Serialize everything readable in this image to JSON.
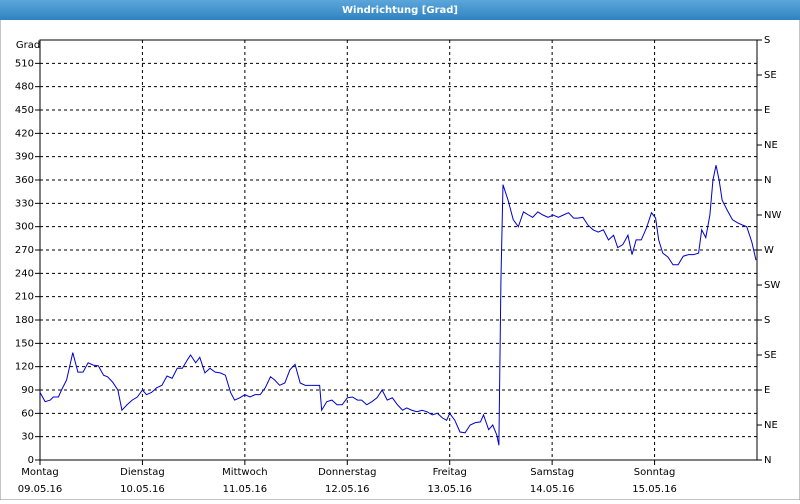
{
  "window_title": "Windrichtung [Grad]",
  "chart_data": {
    "type": "line",
    "y_label": "Grad",
    "x": [
      0,
      0.05,
      0.1,
      0.13,
      0.18,
      0.21,
      0.26,
      0.32,
      0.37,
      0.42,
      0.47,
      0.52,
      0.57,
      0.62,
      0.66,
      0.71,
      0.76,
      0.8,
      0.85,
      0.9,
      0.95,
      1.0,
      1.04,
      1.09,
      1.14,
      1.19,
      1.24,
      1.29,
      1.34,
      1.39,
      1.44,
      1.47,
      1.52,
      1.56,
      1.61,
      1.66,
      1.71,
      1.76,
      1.81,
      1.86,
      1.9,
      1.95,
      2.0,
      2.05,
      2.1,
      2.15,
      2.2,
      2.25,
      2.29,
      2.34,
      2.39,
      2.44,
      2.49,
      2.54,
      2.59,
      2.64,
      2.69,
      2.73,
      2.75,
      2.8,
      2.85,
      2.9,
      2.95,
      3.0,
      3.05,
      3.1,
      3.14,
      3.19,
      3.24,
      3.29,
      3.34,
      3.39,
      3.44,
      3.49,
      3.54,
      3.58,
      3.63,
      3.68,
      3.73,
      3.78,
      3.83,
      3.88,
      3.93,
      3.97,
      4.0,
      4.05,
      4.1,
      4.15,
      4.2,
      4.25,
      4.3,
      4.33,
      4.38,
      4.42,
      4.46,
      4.48,
      4.5,
      4.52,
      4.57,
      4.62,
      4.67,
      4.72,
      4.77,
      4.81,
      4.86,
      4.91,
      4.96,
      5.01,
      5.06,
      5.11,
      5.16,
      5.21,
      5.25,
      5.3,
      5.35,
      5.4,
      5.45,
      5.5,
      5.55,
      5.6,
      5.64,
      5.69,
      5.74,
      5.78,
      5.82,
      5.87,
      5.92,
      5.97,
      6.01,
      6.04,
      6.08,
      6.13,
      6.18,
      6.23,
      6.28,
      6.33,
      6.38,
      6.43,
      6.46,
      6.5,
      6.54,
      6.57,
      6.6,
      6.63,
      6.66,
      6.71,
      6.76,
      6.81,
      6.86,
      6.9,
      6.95,
      6.99
    ],
    "series": [
      {
        "color": "#0000cc",
        "values": [
          87,
          75,
          77,
          81,
          81,
          90,
          103,
          138,
          113,
          113,
          125,
          122,
          121,
          109,
          107,
          100,
          90,
          64,
          71,
          77,
          81,
          90,
          84,
          87,
          93,
          96,
          108,
          105,
          118,
          118,
          129,
          135,
          125,
          132,
          112,
          118,
          113,
          112,
          109,
          87,
          77,
          80,
          84,
          81,
          84,
          84,
          93,
          107,
          103,
          96,
          99,
          116,
          123,
          99,
          96,
          96,
          96,
          96,
          64,
          75,
          77,
          71,
          71,
          80,
          81,
          77,
          77,
          71,
          75,
          80,
          90,
          77,
          80,
          71,
          64,
          67,
          64,
          62,
          64,
          62,
          58,
          60,
          54,
          51,
          60,
          51,
          36,
          35,
          45,
          48,
          49,
          58,
          39,
          45,
          32,
          19,
          231,
          354,
          334,
          309,
          300,
          319,
          315,
          312,
          319,
          315,
          312,
          315,
          312,
          315,
          318,
          311,
          311,
          312,
          302,
          296,
          293,
          296,
          283,
          289,
          273,
          277,
          289,
          264,
          283,
          283,
          298,
          318,
          311,
          283,
          266,
          261,
          251,
          251,
          262,
          264,
          264,
          266,
          296,
          286,
          315,
          360,
          379,
          360,
          334,
          321,
          309,
          305,
          302,
          300,
          280,
          257
        ]
      }
    ],
    "xlim": [
      0,
      7
    ],
    "xticks": [
      {
        "value": 0,
        "label": "Montag",
        "date": "09.05.16"
      },
      {
        "value": 1,
        "label": "Dienstag",
        "date": "10.05.16"
      },
      {
        "value": 2,
        "label": "Mittwoch",
        "date": "11.05.16"
      },
      {
        "value": 3,
        "label": "Donnerstag",
        "date": "12.05.16"
      },
      {
        "value": 4,
        "label": "Freitag",
        "date": "13.05.16"
      },
      {
        "value": 5,
        "label": "Samstag",
        "date": "14.05.16"
      },
      {
        "value": 6,
        "label": "Sonntag",
        "date": "15.05.16"
      }
    ],
    "ylim": [
      0,
      540
    ],
    "yticks": [
      0,
      30,
      60,
      90,
      120,
      150,
      180,
      210,
      240,
      270,
      300,
      330,
      360,
      390,
      420,
      450,
      480,
      510
    ],
    "y2lim": [
      0,
      540
    ],
    "y2ticks": [
      {
        "value": 0,
        "label": "N"
      },
      {
        "value": 45,
        "label": "NE"
      },
      {
        "value": 90,
        "label": "E"
      },
      {
        "value": 135,
        "label": "SE"
      },
      {
        "value": 180,
        "label": "S"
      },
      {
        "value": 225,
        "label": "SW"
      },
      {
        "value": 270,
        "label": "W"
      },
      {
        "value": 315,
        "label": "NW"
      },
      {
        "value": 360,
        "label": "N"
      },
      {
        "value": 405,
        "label": "NE"
      },
      {
        "value": 450,
        "label": "E"
      },
      {
        "value": 495,
        "label": "SE"
      },
      {
        "value": 540,
        "label": "S"
      }
    ],
    "grid": true
  }
}
